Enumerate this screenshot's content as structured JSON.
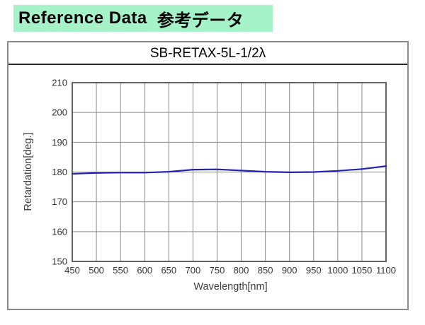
{
  "header": {
    "title_en": "Reference Data",
    "title_ja": "参考データ",
    "bg_color": "#a7f3c9"
  },
  "chart_data": {
    "type": "line",
    "title": "SB-RETAX-5L-1/2λ",
    "xlabel": "Wavelength[nm]",
    "ylabel": "Retardation[deg.]",
    "x": [
      450,
      500,
      550,
      600,
      650,
      700,
      750,
      800,
      850,
      900,
      950,
      1000,
      1050,
      1100
    ],
    "series": [
      {
        "name": "Retardation",
        "color": "#2222bb",
        "values": [
          179.4,
          179.7,
          179.8,
          179.8,
          180.1,
          180.8,
          180.9,
          180.5,
          180.1,
          179.9,
          180.0,
          180.4,
          181.0,
          182.0
        ]
      }
    ],
    "xlim": [
      450,
      1100
    ],
    "ylim": [
      150,
      210
    ],
    "yticks": [
      150,
      160,
      170,
      180,
      190,
      200,
      210
    ],
    "grid": true,
    "legend": "none",
    "grid_color": "#8a8a8a",
    "frame_color": "#3c3c3c"
  }
}
